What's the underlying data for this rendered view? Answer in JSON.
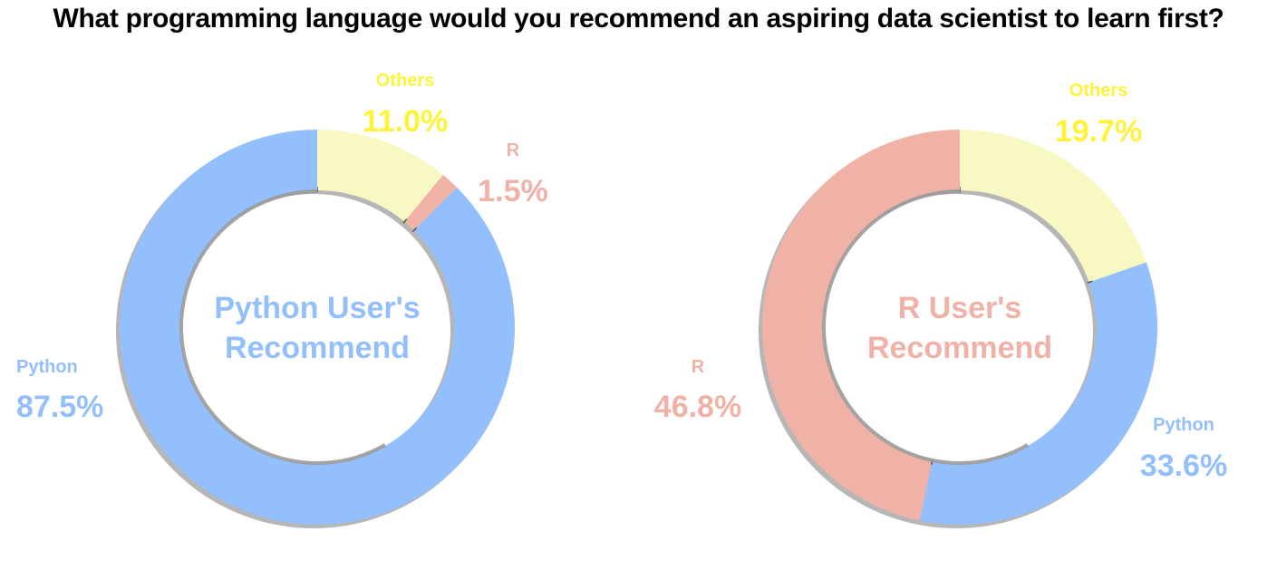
{
  "title": "What programming language would you recommend an aspiring data scientist to learn first?",
  "colors": {
    "python": "#94bffd",
    "r": "#f0b1a7",
    "others": "#f8f9c2",
    "others_label": "#fff23a"
  },
  "chart_data": [
    {
      "type": "pie",
      "variant": "donut",
      "center_label": [
        "Python User's",
        "Recommend"
      ],
      "slices": [
        {
          "label": "Others",
          "value": 11.0,
          "value_text": "11.0%"
        },
        {
          "label": "R",
          "value": 1.5,
          "value_text": "1.5%"
        },
        {
          "label": "Python",
          "value": 87.5,
          "value_text": "87.5%"
        }
      ]
    },
    {
      "type": "pie",
      "variant": "donut",
      "center_label": [
        "R User's",
        "Recommend"
      ],
      "slices": [
        {
          "label": "Others",
          "value": 19.7,
          "value_text": "19.7%"
        },
        {
          "label": "Python",
          "value": 33.6,
          "value_text": "33.6%"
        },
        {
          "label": "R",
          "value": 46.8,
          "value_text": "46.8%"
        }
      ]
    }
  ]
}
